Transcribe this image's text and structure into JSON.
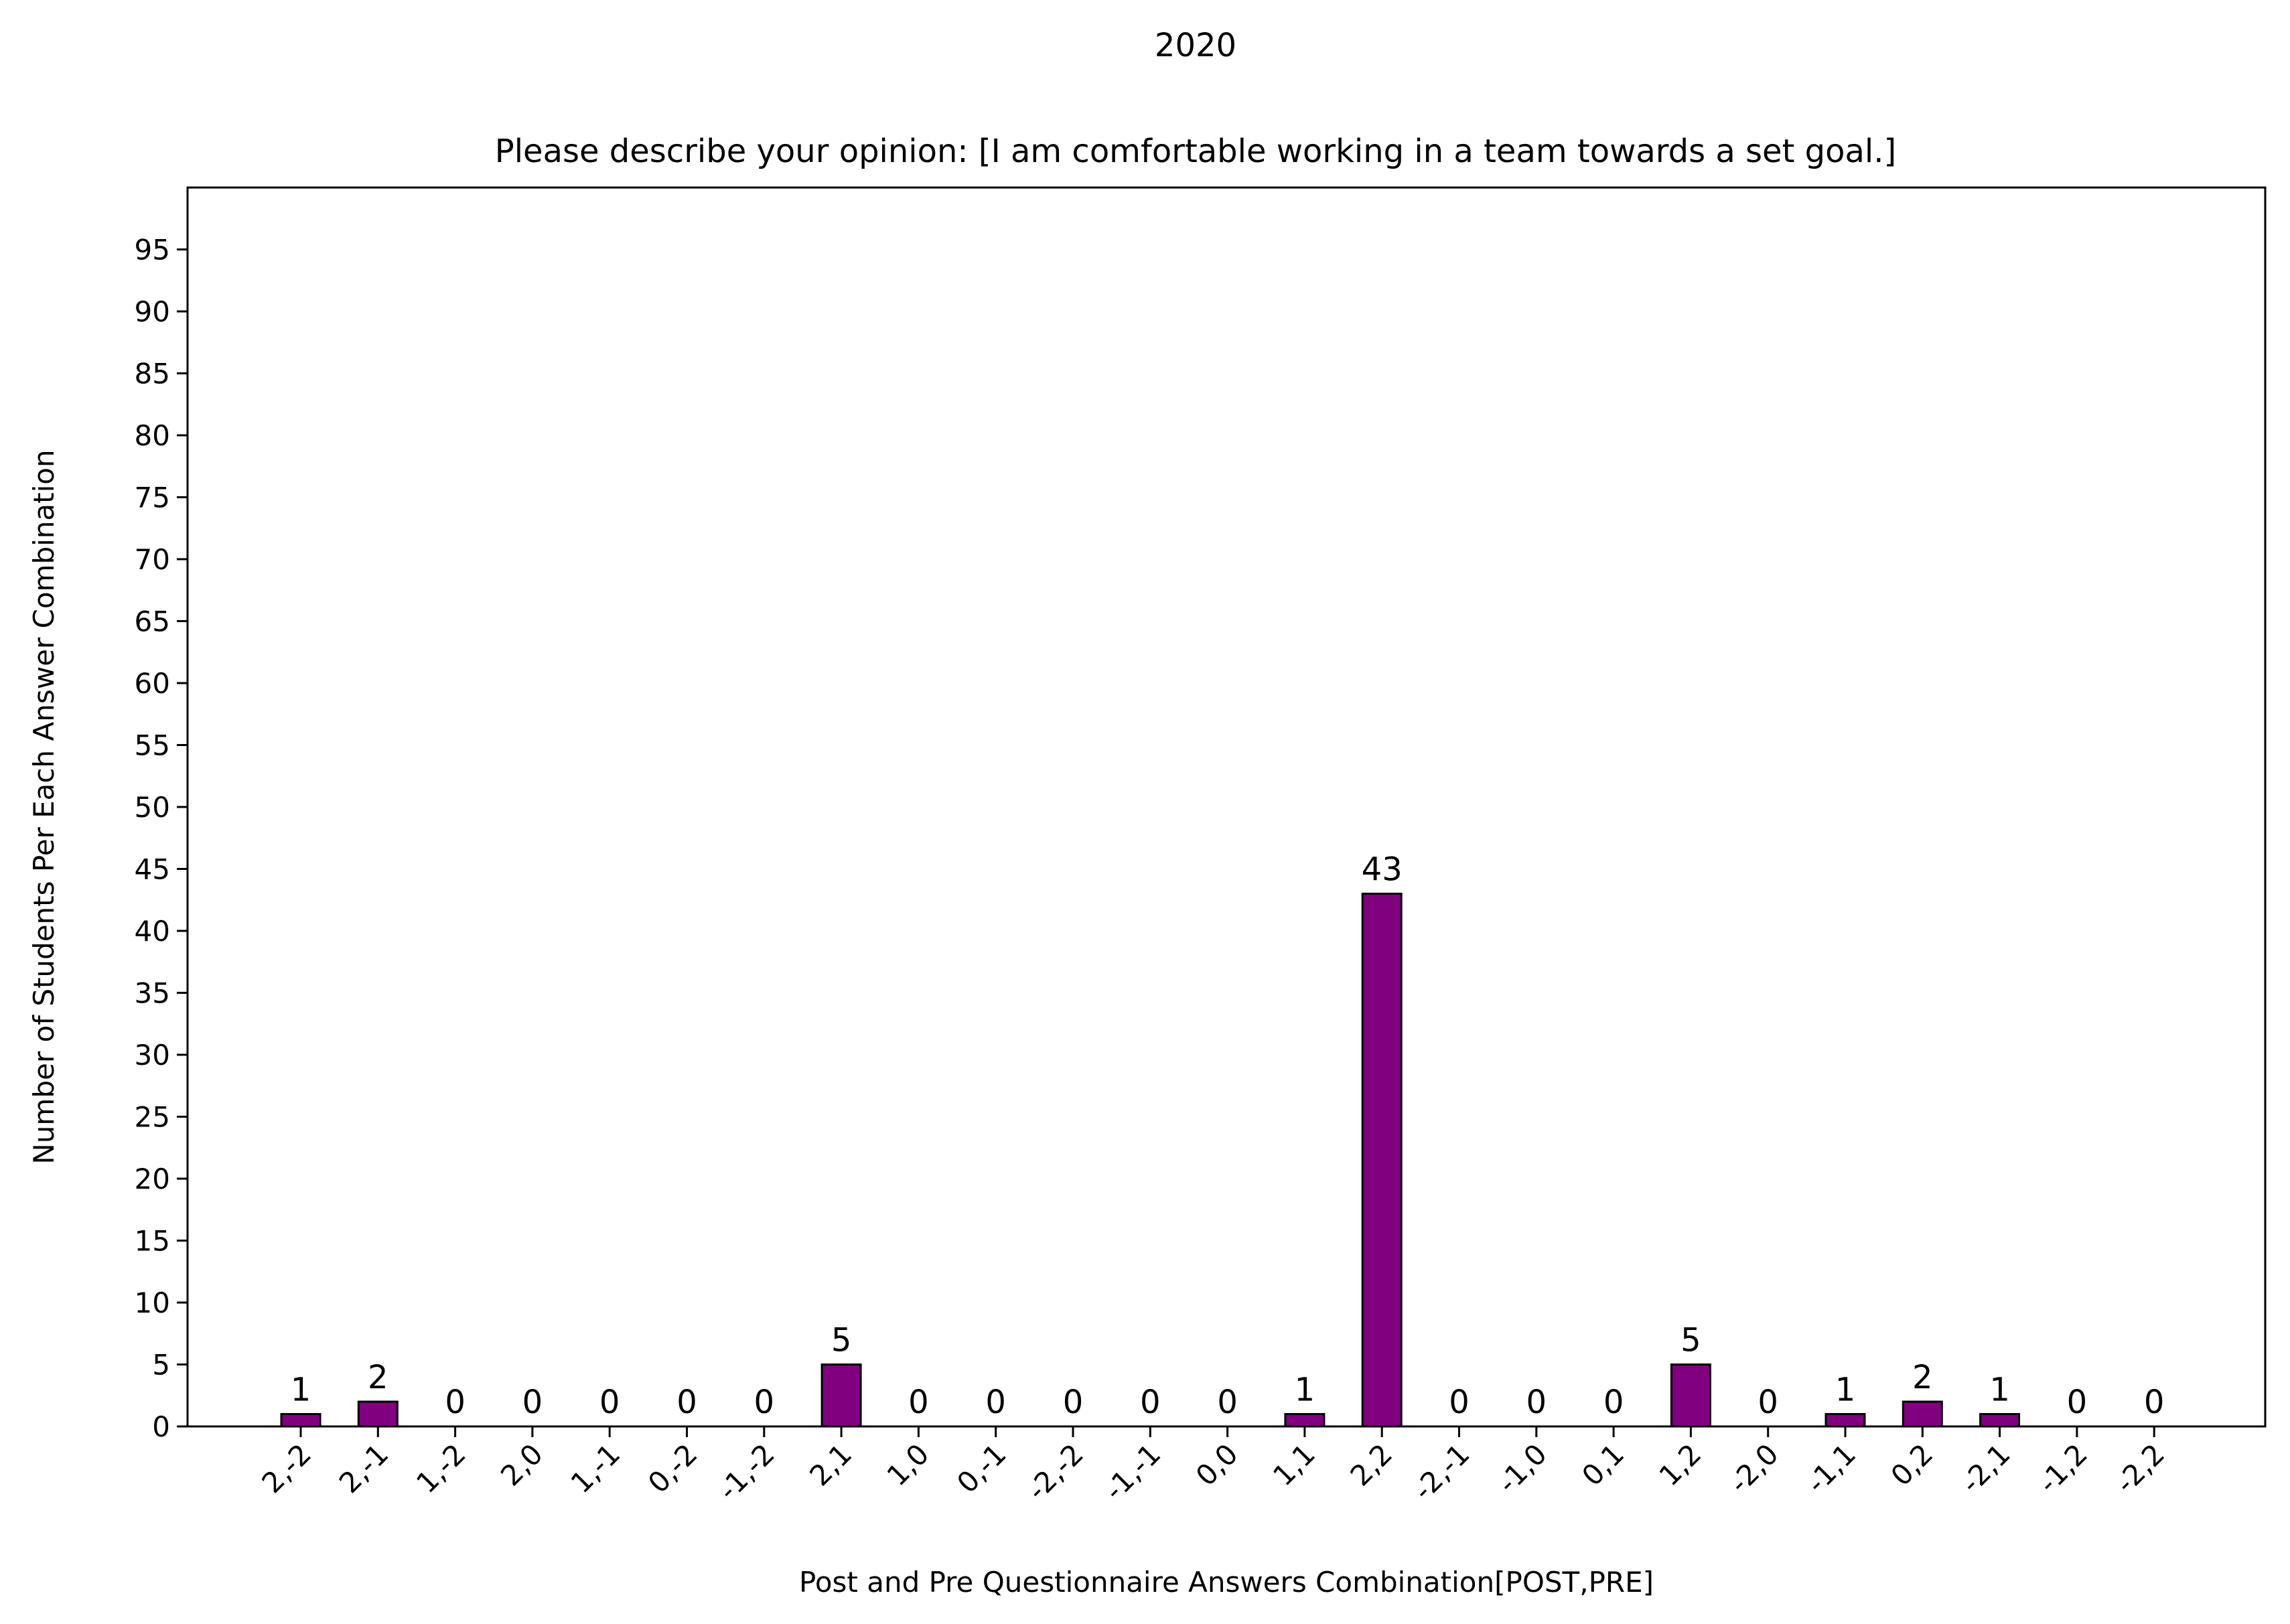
{
  "chart_data": {
    "type": "bar",
    "suptitle": "2020",
    "title": "Please describe your opinion: [I am comfortable working in a team towards a set goal.]",
    "xlabel": "Post and Pre Questionnaire Answers Combination[POST,PRE]",
    "ylabel": "Number of Students Per Each Answer Combination",
    "categories": [
      "2,-2",
      "2,-1",
      "1,-2",
      "2,0",
      "1,-1",
      "0,-2",
      "-1,-2",
      "2,1",
      "1,0",
      "0,-1",
      "-2,-2",
      "-1,-1",
      "0,0",
      "1,1",
      "2,2",
      "-2,-1",
      "-1,0",
      "0,1",
      "1,2",
      "-2,0",
      "-1,1",
      "0,2",
      "-2,1",
      "-1,2",
      "-2,2"
    ],
    "values": [
      1,
      2,
      0,
      0,
      0,
      0,
      0,
      5,
      0,
      0,
      0,
      0,
      0,
      1,
      43,
      0,
      0,
      0,
      5,
      0,
      1,
      2,
      1,
      0,
      0
    ],
    "ylim": [
      0,
      100
    ],
    "yticks": [
      0,
      5,
      10,
      15,
      20,
      25,
      30,
      35,
      40,
      45,
      50,
      55,
      60,
      65,
      70,
      75,
      80,
      85,
      90,
      95
    ],
    "bar_color": "#800080",
    "edge_color": "#000000",
    "grid": false,
    "legend": false
  }
}
